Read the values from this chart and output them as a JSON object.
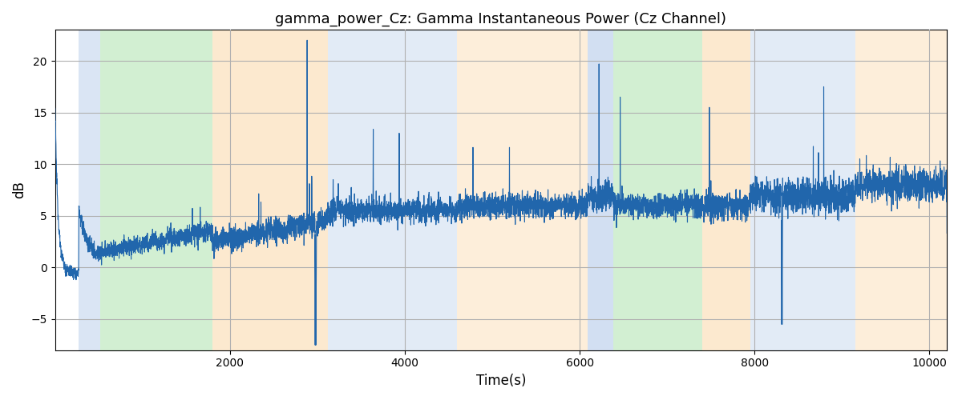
{
  "title": "gamma_power_Cz: Gamma Instantaneous Power (Cz Channel)",
  "xlabel": "Time(s)",
  "ylabel": "dB",
  "xlim": [
    0,
    10200
  ],
  "ylim": [
    -8,
    23
  ],
  "line_color": "#2166ac",
  "line_width": 0.8,
  "background_color": "#ffffff",
  "grid_color": "#b0b0b0",
  "bands": [
    {
      "xmin": 270,
      "xmax": 520,
      "color": "#aec6e8",
      "alpha": 0.45
    },
    {
      "xmin": 520,
      "xmax": 1800,
      "color": "#90d890",
      "alpha": 0.4
    },
    {
      "xmin": 1800,
      "xmax": 3120,
      "color": "#fad095",
      "alpha": 0.45
    },
    {
      "xmin": 3120,
      "xmax": 4600,
      "color": "#aec6e8",
      "alpha": 0.35
    },
    {
      "xmin": 4600,
      "xmax": 6090,
      "color": "#fad095",
      "alpha": 0.35
    },
    {
      "xmin": 6090,
      "xmax": 6380,
      "color": "#aec6e8",
      "alpha": 0.55
    },
    {
      "xmin": 6380,
      "xmax": 7400,
      "color": "#90d890",
      "alpha": 0.4
    },
    {
      "xmin": 7400,
      "xmax": 7950,
      "color": "#fad095",
      "alpha": 0.45
    },
    {
      "xmin": 7950,
      "xmax": 9150,
      "color": "#aec6e8",
      "alpha": 0.35
    },
    {
      "xmin": 9150,
      "xmax": 10200,
      "color": "#fad095",
      "alpha": 0.35
    }
  ],
  "xticks": [
    2000,
    4000,
    6000,
    8000,
    10000
  ],
  "yticks": [
    -5,
    0,
    5,
    10,
    15,
    20
  ],
  "seed": 12345
}
